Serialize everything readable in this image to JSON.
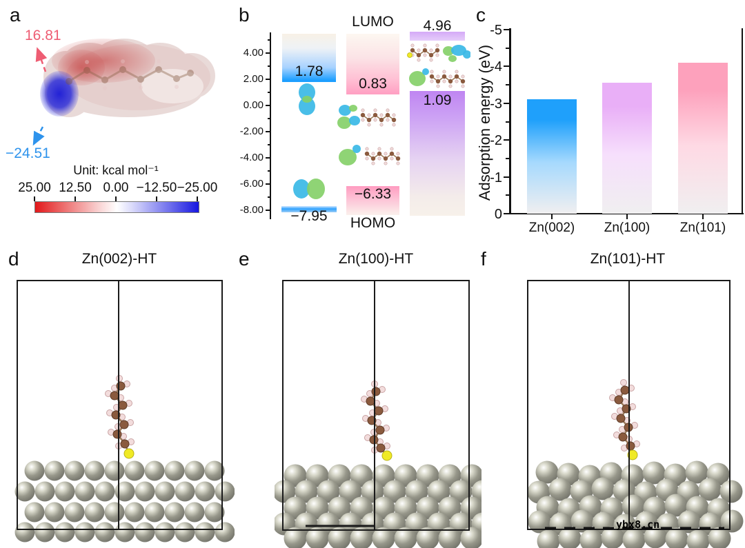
{
  "figure": {
    "panel_labels": {
      "a": "a",
      "b": "b",
      "c": "c",
      "d": "d",
      "e": "e",
      "f": "f"
    }
  },
  "panel_a": {
    "esp_positive": "16.81",
    "esp_negative": "−24.51",
    "positive_label_color": "#ee5d73",
    "negative_label_color": "#2e93ec",
    "unit_label": "Unit: kcal mol⁻¹",
    "colorbar_ticks": [
      "25.00",
      "12.50",
      "0.00",
      "−12.50",
      "−25.00"
    ],
    "colorbar_left_color": "#e2191b",
    "colorbar_mid_color": "#ffffff",
    "colorbar_right_color": "#1717e0"
  },
  "panel_d": {
    "title": "Zn(002)-HT"
  },
  "panel_e": {
    "title": "Zn(100)-HT"
  },
  "panel_f": {
    "title": "Zn(101)-HT",
    "watermark": "ybx8.cn"
  },
  "chart_data": [
    {
      "type": "level-diagram",
      "title": "",
      "top_label": "LUMO",
      "bottom_label": "HOMO",
      "yticks": [
        "4.00",
        "2.00",
        "0.00",
        "-2.00",
        "-4.00",
        "-6.00",
        "-8.00"
      ],
      "ytick_values": [
        4,
        2,
        0,
        -2,
        -4,
        -6,
        -8
      ],
      "ylim": [
        5.6,
        -8.6
      ],
      "columns": [
        {
          "color_theme": "blue",
          "upper_level": {
            "value": 1.78,
            "label": "1.78"
          },
          "lower_level": {
            "value": -7.95,
            "label": "−7.95"
          }
        },
        {
          "color_theme": "pink",
          "upper_level": {
            "value": 0.83,
            "label": "0.83"
          },
          "lower_level": {
            "value": -6.33,
            "label": "−6.33"
          }
        },
        {
          "color_theme": "purple",
          "upper_level": {
            "value": 4.96,
            "label": "4.96"
          },
          "lower_level": {
            "value": 1.09,
            "label": "1.09"
          }
        }
      ]
    },
    {
      "type": "bar",
      "title": "",
      "categories": [
        "Zn(002)",
        "Zn(100)",
        "Zn(101)"
      ],
      "values": [
        -3.1,
        -3.55,
        -4.1
      ],
      "ylabel": "Adsorption energy (eV)",
      "xlabel": "",
      "yticks": [
        "0",
        "-1",
        "-2",
        "-3",
        "-4",
        "-5"
      ],
      "ytick_values": [
        0,
        -1,
        -2,
        -3,
        -4,
        -5
      ],
      "ylim": [
        0,
        -5
      ],
      "axis_orientation": "inverted: 0 at bottom, -5 at top",
      "legend": "none",
      "grid": "off",
      "bar_colors": [
        "#1fa0fb",
        "#e9aff7",
        "#fda1bc"
      ]
    }
  ]
}
